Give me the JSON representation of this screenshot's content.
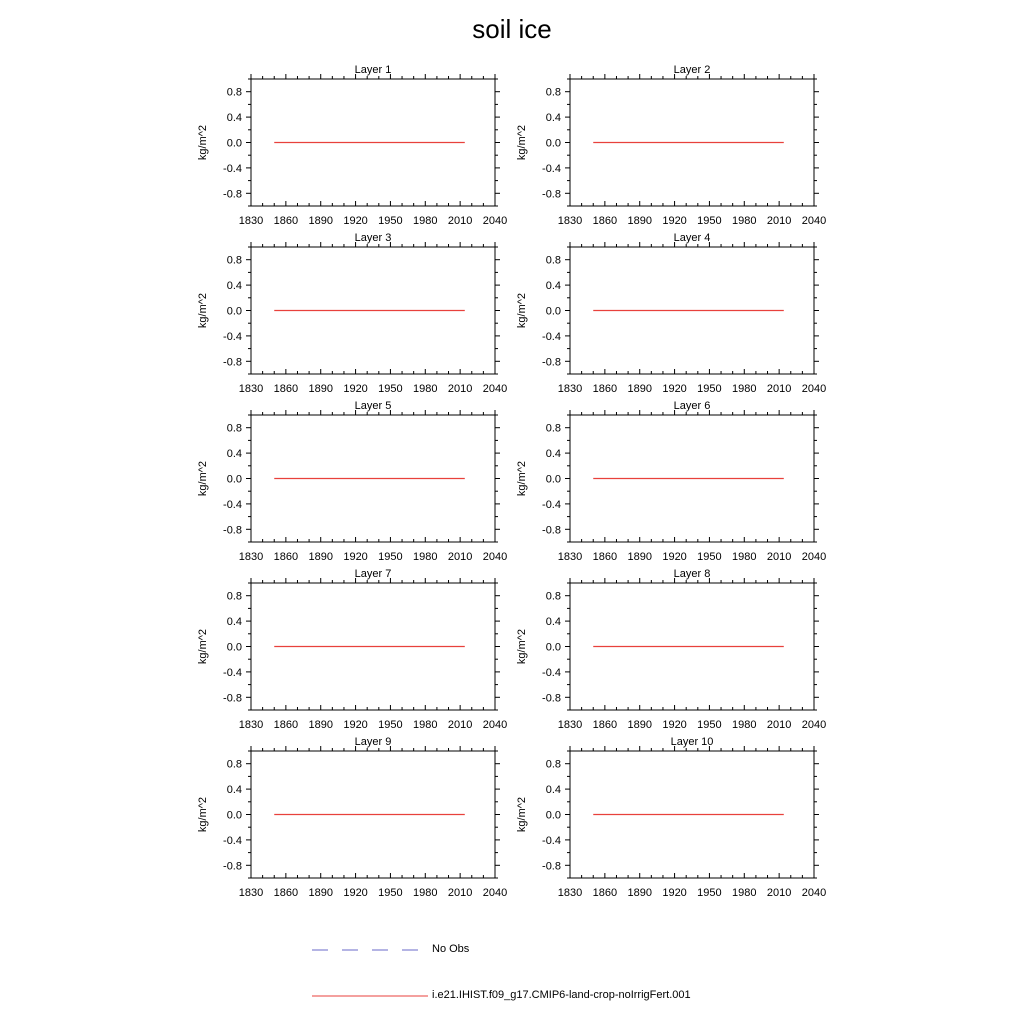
{
  "title": "soil ice",
  "chart_data": {
    "type": "line",
    "shared": {
      "ylabel": "kg/m^2",
      "xlim": [
        1830,
        2040
      ],
      "ylim": [
        -1.0,
        1.0
      ],
      "xticks": [
        1830,
        1860,
        1890,
        1920,
        1950,
        1980,
        2010,
        2040
      ],
      "xtick_labels": [
        "1830",
        "1860",
        "1890",
        "1920",
        "1950",
        "1980",
        "2010",
        "2040"
      ],
      "yticks": [
        0.8,
        0.4,
        0.0,
        -0.4,
        -0.8
      ],
      "ytick_labels": [
        "0.8",
        "0.4",
        "0.0",
        "-0.4",
        "-0.8"
      ],
      "grid": false
    },
    "panels": [
      {
        "title": "Layer 1",
        "series": [
          {
            "name": "i.e21.IHIST.f09_g17.CMIP6-land-crop-noIrrigFert.001",
            "color": "#e8413c",
            "x": [
              1850,
              2014
            ],
            "y": [
              0.0,
              0.0
            ]
          }
        ]
      },
      {
        "title": "Layer 2",
        "series": [
          {
            "name": "i.e21.IHIST.f09_g17.CMIP6-land-crop-noIrrigFert.001",
            "color": "#e8413c",
            "x": [
              1850,
              2014
            ],
            "y": [
              0.0,
              0.0
            ]
          }
        ]
      },
      {
        "title": "Layer 3",
        "series": [
          {
            "name": "i.e21.IHIST.f09_g17.CMIP6-land-crop-noIrrigFert.001",
            "color": "#e8413c",
            "x": [
              1850,
              2014
            ],
            "y": [
              0.0,
              0.0
            ]
          }
        ]
      },
      {
        "title": "Layer 4",
        "series": [
          {
            "name": "i.e21.IHIST.f09_g17.CMIP6-land-crop-noIrrigFert.001",
            "color": "#e8413c",
            "x": [
              1850,
              2014
            ],
            "y": [
              0.0,
              0.0
            ]
          }
        ]
      },
      {
        "title": "Layer 5",
        "series": [
          {
            "name": "i.e21.IHIST.f09_g17.CMIP6-land-crop-noIrrigFert.001",
            "color": "#e8413c",
            "x": [
              1850,
              2014
            ],
            "y": [
              0.0,
              0.0
            ]
          }
        ]
      },
      {
        "title": "Layer 6",
        "series": [
          {
            "name": "i.e21.IHIST.f09_g17.CMIP6-land-crop-noIrrigFert.001",
            "color": "#e8413c",
            "x": [
              1850,
              2014
            ],
            "y": [
              0.0,
              0.0
            ]
          }
        ]
      },
      {
        "title": "Layer 7",
        "series": [
          {
            "name": "i.e21.IHIST.f09_g17.CMIP6-land-crop-noIrrigFert.001",
            "color": "#e8413c",
            "x": [
              1850,
              2014
            ],
            "y": [
              0.0,
              0.0
            ]
          }
        ]
      },
      {
        "title": "Layer 8",
        "series": [
          {
            "name": "i.e21.IHIST.f09_g17.CMIP6-land-crop-noIrrigFert.001",
            "color": "#e8413c",
            "x": [
              1850,
              2014
            ],
            "y": [
              0.0,
              0.0
            ]
          }
        ]
      },
      {
        "title": "Layer 9",
        "series": [
          {
            "name": "i.e21.IHIST.f09_g17.CMIP6-land-crop-noIrrigFert.001",
            "color": "#e8413c",
            "x": [
              1850,
              2014
            ],
            "y": [
              0.0,
              0.0
            ]
          }
        ]
      },
      {
        "title": "Layer 10",
        "series": [
          {
            "name": "i.e21.IHIST.f09_g17.CMIP6-land-crop-noIrrigFert.001",
            "color": "#e8413c",
            "x": [
              1850,
              2014
            ],
            "y": [
              0.0,
              0.0
            ]
          }
        ]
      }
    ],
    "legend": {
      "placement": "bottom",
      "entries": [
        {
          "label": "No Obs",
          "style": "dashed",
          "color": "#6a6ac8"
        },
        {
          "label": "i.e21.IHIST.f09_g17.CMIP6-land-crop-noIrrigFert.001",
          "style": "solid",
          "color": "#e8413c"
        }
      ]
    }
  }
}
